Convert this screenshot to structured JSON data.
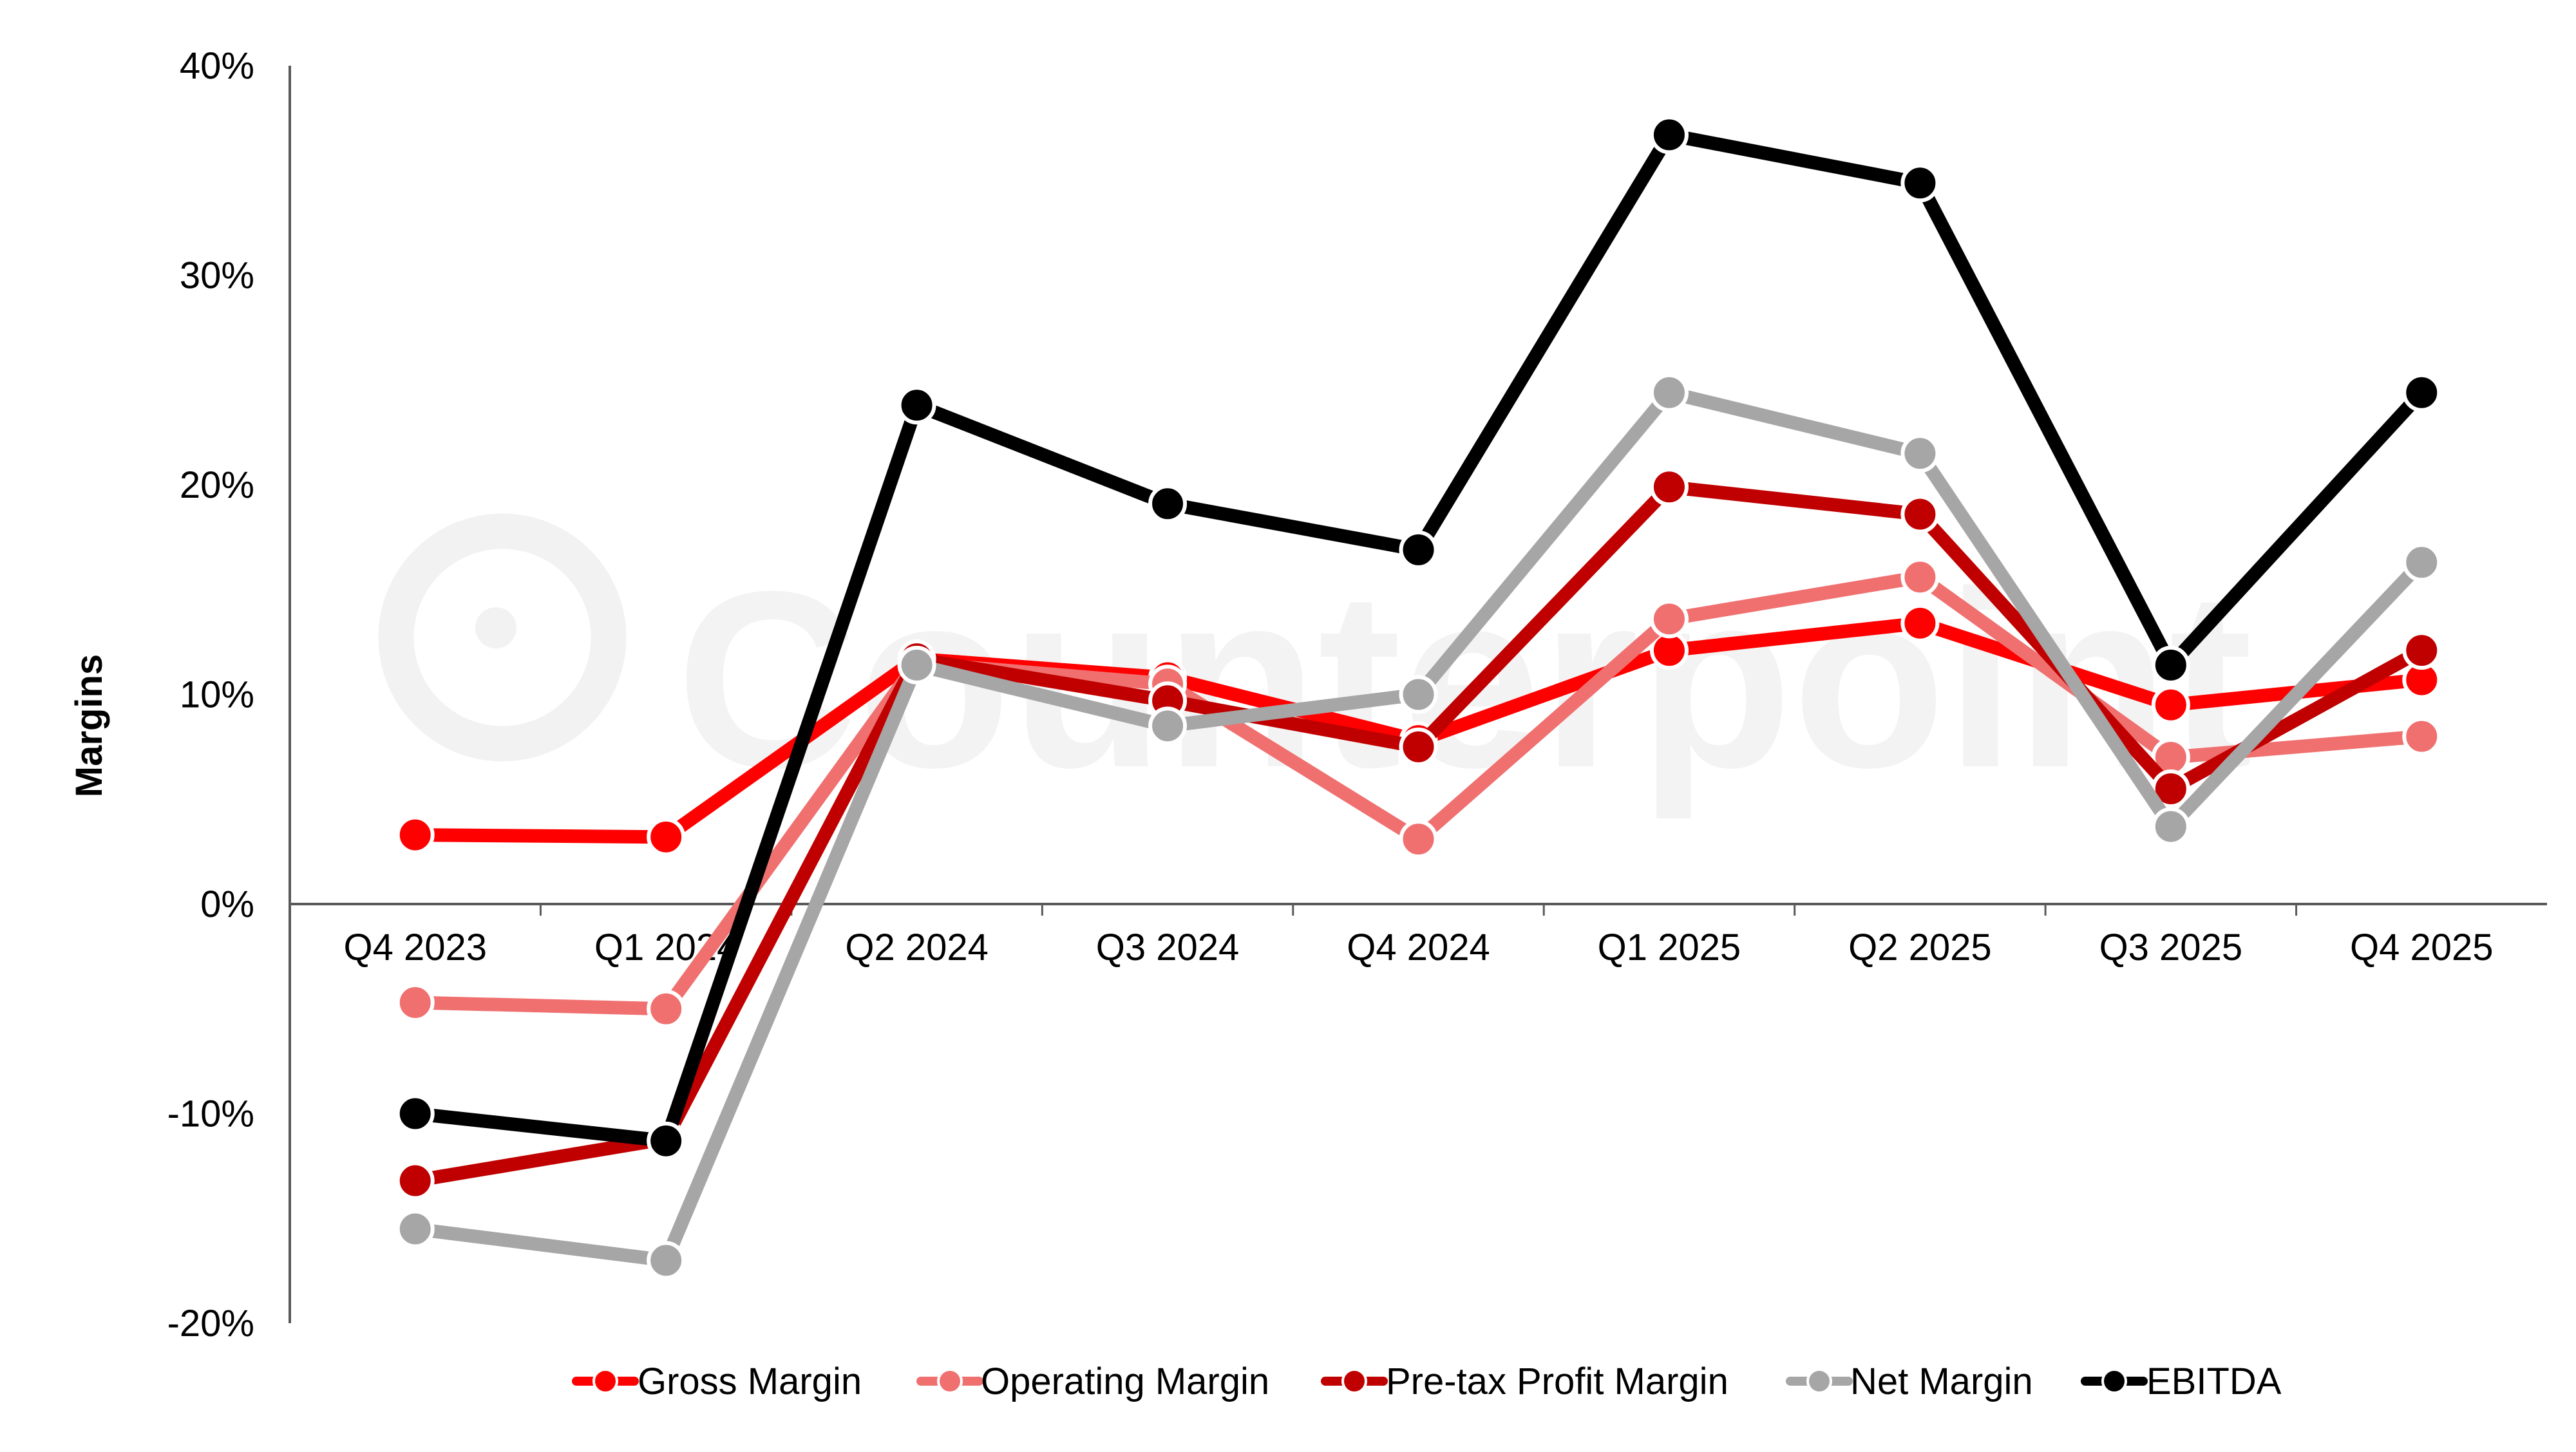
{
  "watermark": "Counterpoint",
  "chart_data": {
    "type": "line",
    "title": "",
    "xlabel": "",
    "ylabel": "Margins",
    "categories": [
      "Q4 2023",
      "Q1 2024",
      "Q2 2024",
      "Q3 2024",
      "Q4 2024",
      "Q1 2025",
      "Q2 2025",
      "Q3 2025",
      "Q4 2025"
    ],
    "ylim": [
      -20,
      40
    ],
    "yticks": [
      -20,
      -10,
      0,
      10,
      20,
      30,
      40
    ],
    "ytick_labels": [
      "-20%",
      "-10%",
      "0%",
      "10%",
      "20%",
      "30%",
      "40%"
    ],
    "grid": false,
    "legend_position": "bottom",
    "series": [
      {
        "name": "Gross Margin",
        "color": "#FF0000",
        "values": [
          3.3,
          3.2,
          11.7,
          10.8,
          7.8,
          12.1,
          13.4,
          9.5,
          10.7
        ]
      },
      {
        "name": "Operating Margin",
        "color": "#F07070",
        "values": [
          -4.7,
          -5.0,
          11.5,
          10.5,
          3.1,
          13.6,
          15.6,
          7.0,
          8.0
        ]
      },
      {
        "name": "Pre-tax Profit Margin",
        "color": "#C00000",
        "values": [
          -13.2,
          -11.2,
          11.7,
          9.7,
          7.5,
          19.9,
          18.6,
          5.5,
          12.1
        ]
      },
      {
        "name": "Net Margin",
        "color": "#A6A6A6",
        "values": [
          -15.5,
          -17.0,
          11.4,
          8.5,
          10.0,
          24.4,
          21.5,
          3.7,
          16.3
        ]
      },
      {
        "name": "EBITDA",
        "color": "#000000",
        "values": [
          -10.0,
          -11.3,
          23.8,
          19.1,
          16.9,
          36.7,
          34.4,
          11.4,
          24.4
        ]
      }
    ]
  }
}
